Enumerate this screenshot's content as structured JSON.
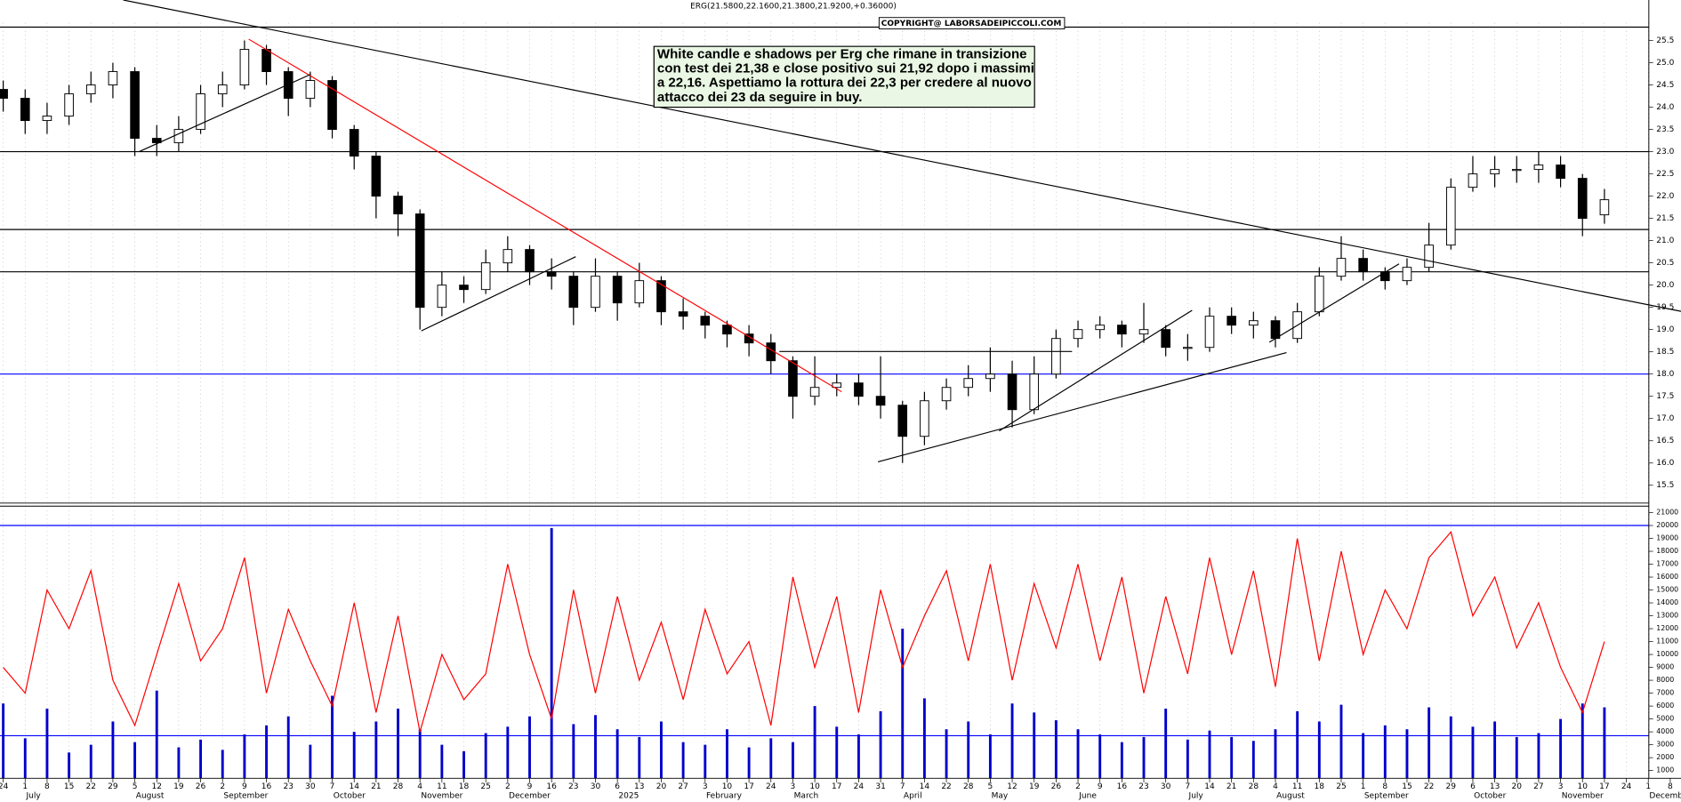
{
  "chart_data": [
    {
      "type": "candlestick",
      "title": "ERG(21.5800,22.1600,21.3800,21.9200,+0.36000)",
      "copyright": "COPYRIGHT@ LABORSADEIPICCOLI.COM",
      "annotation": [
        "White candle e shadows per Erg che rimane in transizione",
        "con test dei 21,38 e close positivo sui 21,92 dopo i massimi",
        "a 22,16.  Aspettiamo la rottura dei 22,3 per credere al nuovo",
        "attacco dei 23 da seguire in buy."
      ],
      "categories": [
        "24",
        "1",
        "8",
        "15",
        "22",
        "29",
        "5",
        "12",
        "19",
        "26",
        "2",
        "9",
        "16",
        "23",
        "30",
        "7",
        "14",
        "21",
        "28",
        "4",
        "11",
        "18",
        "25",
        "2",
        "9",
        "16",
        "23",
        "30",
        "6",
        "13",
        "20",
        "27",
        "3",
        "10",
        "17",
        "24",
        "3",
        "10",
        "17",
        "24",
        "31",
        "7",
        "14",
        "22",
        "28",
        "5",
        "12",
        "19",
        "26",
        "2",
        "9",
        "16",
        "23",
        "30",
        "7",
        "14",
        "21",
        "28",
        "4",
        "11",
        "18",
        "25",
        "1",
        "8",
        "15",
        "22",
        "29",
        "6",
        "13",
        "20",
        "27",
        "3",
        "10",
        "17",
        "24",
        "1",
        "8"
      ],
      "months": [
        null,
        "July",
        null,
        null,
        null,
        null,
        "August",
        null,
        null,
        null,
        "September",
        null,
        null,
        null,
        null,
        "October",
        null,
        null,
        null,
        "November",
        null,
        null,
        null,
        "December",
        null,
        null,
        null,
        null,
        "2025",
        null,
        null,
        null,
        "February",
        null,
        null,
        null,
        "March",
        null,
        null,
        null,
        null,
        "April",
        null,
        null,
        null,
        "May",
        null,
        null,
        null,
        "June",
        null,
        null,
        null,
        null,
        "July",
        null,
        null,
        null,
        "August",
        null,
        null,
        null,
        "September",
        null,
        null,
        null,
        null,
        "October",
        null,
        null,
        null,
        "November",
        null,
        null,
        null,
        "December",
        null
      ],
      "open": [
        24.4,
        24.2,
        23.7,
        23.8,
        24.3,
        24.5,
        24.8,
        23.3,
        23.2,
        23.5,
        24.3,
        24.5,
        25.3,
        24.8,
        24.2,
        24.6,
        23.5,
        22.9,
        22.0,
        21.6,
        19.5,
        20.0,
        19.9,
        20.5,
        20.8,
        20.3,
        20.2,
        19.5,
        20.2,
        19.6,
        20.1,
        19.4,
        19.3,
        19.1,
        18.9,
        18.7,
        18.3,
        17.5,
        17.7,
        17.8,
        17.5,
        17.3,
        16.6,
        17.4,
        17.7,
        17.9,
        18.0,
        17.2,
        18.0,
        18.8,
        19.0,
        19.1,
        18.9,
        19.0,
        18.6,
        18.6,
        19.3,
        19.1,
        19.2,
        18.8,
        19.4,
        20.2,
        20.6,
        20.3,
        20.1,
        20.4,
        20.9,
        22.2,
        22.5,
        22.6,
        22.6,
        22.7,
        22.4,
        21.58,
        null,
        null,
        null
      ],
      "high": [
        24.6,
        24.4,
        24.1,
        24.5,
        24.8,
        25.0,
        24.9,
        23.6,
        23.8,
        24.5,
        24.8,
        25.5,
        25.4,
        24.9,
        24.8,
        24.7,
        23.6,
        23.0,
        22.1,
        21.7,
        20.3,
        20.2,
        20.8,
        21.1,
        20.9,
        20.6,
        20.3,
        20.6,
        20.3,
        20.5,
        20.2,
        19.7,
        19.4,
        19.2,
        19.1,
        18.9,
        18.4,
        18.4,
        18.0,
        18.0,
        18.4,
        17.4,
        17.6,
        17.9,
        18.2,
        18.6,
        18.3,
        18.4,
        19.0,
        19.2,
        19.3,
        19.2,
        19.6,
        19.1,
        18.9,
        19.5,
        19.5,
        19.4,
        19.3,
        19.6,
        20.4,
        21.1,
        20.8,
        20.4,
        20.6,
        21.4,
        22.4,
        22.9,
        22.9,
        22.9,
        23.0,
        22.9,
        22.5,
        22.16,
        null,
        null,
        null
      ],
      "low": [
        23.9,
        23.4,
        23.4,
        23.6,
        24.1,
        24.2,
        22.9,
        22.9,
        23.0,
        23.4,
        24.0,
        24.4,
        24.5,
        23.8,
        24.0,
        23.3,
        22.6,
        21.5,
        21.1,
        19.0,
        19.3,
        19.6,
        19.8,
        20.3,
        20.0,
        19.9,
        19.1,
        19.4,
        19.2,
        19.5,
        19.1,
        19.0,
        18.8,
        18.6,
        18.4,
        18.0,
        17.0,
        17.3,
        17.5,
        17.3,
        17.0,
        16.0,
        16.4,
        17.2,
        17.5,
        17.6,
        16.8,
        17.1,
        17.9,
        18.6,
        18.8,
        18.6,
        18.7,
        18.4,
        18.3,
        18.5,
        18.9,
        18.8,
        18.6,
        18.7,
        19.3,
        20.1,
        20.1,
        19.9,
        20.0,
        20.3,
        20.8,
        22.1,
        22.2,
        22.3,
        22.3,
        22.2,
        21.1,
        21.38,
        null,
        null,
        null
      ],
      "close": [
        24.2,
        23.7,
        23.8,
        24.3,
        24.5,
        24.8,
        23.3,
        23.2,
        23.5,
        24.3,
        24.5,
        25.3,
        24.8,
        24.2,
        24.6,
        23.5,
        22.9,
        22.0,
        21.6,
        19.5,
        20.0,
        19.9,
        20.5,
        20.8,
        20.3,
        20.2,
        19.5,
        20.2,
        19.6,
        20.1,
        19.4,
        19.3,
        19.1,
        18.9,
        18.7,
        18.3,
        17.5,
        17.7,
        17.8,
        17.5,
        17.3,
        16.6,
        17.4,
        17.7,
        17.9,
        18.0,
        17.2,
        18.0,
        18.8,
        19.0,
        19.1,
        18.9,
        19.0,
        18.6,
        18.6,
        19.3,
        19.1,
        19.2,
        18.8,
        19.4,
        20.2,
        20.6,
        20.3,
        20.1,
        20.4,
        20.9,
        22.2,
        22.5,
        22.6,
        22.6,
        22.7,
        22.4,
        21.5,
        21.92,
        null,
        null,
        null
      ],
      "ylim": [
        15.1,
        25.9
      ],
      "yticks": [
        15.5,
        {
          "value": 16,
          "label": "16.0"
        },
        16.5,
        {
          "value": 17,
          "label": "17.0"
        },
        17.5,
        {
          "value": 18,
          "label": "18.0"
        },
        18.5,
        {
          "value": 19,
          "label": "19.0"
        },
        19.5,
        {
          "value": 20,
          "label": "20.0"
        },
        20.5,
        {
          "value": 21,
          "label": "21.0"
        },
        21.5,
        {
          "value": 22,
          "label": "22.0"
        },
        22.5,
        {
          "value": 23,
          "label": "23.0"
        },
        23.5,
        {
          "value": 24,
          "label": "24.0"
        },
        24.5,
        {
          "value": 25,
          "label": "25.0"
        },
        25.5
      ],
      "hlines": [
        {
          "value": 25.8,
          "color": "#000000"
        },
        {
          "value": 23.0,
          "color": "#000000"
        },
        {
          "value": 21.25,
          "color": "#000000"
        },
        {
          "value": 20.3,
          "color": "#000000"
        },
        {
          "value": 18.0,
          "color": "#0000ff"
        }
      ]
    },
    {
      "type": "volume",
      "volume": [
        6200,
        3500,
        5800,
        2400,
        3000,
        4800,
        3200,
        7200,
        2800,
        3400,
        2600,
        3800,
        4500,
        5200,
        3000,
        6800,
        4000,
        4800,
        5800,
        4200,
        3000,
        2500,
        3900,
        4400,
        5200,
        19800,
        4600,
        5300,
        4200,
        3600,
        4800,
        3200,
        3000,
        4200,
        2800,
        3500,
        3200,
        6000,
        4400,
        3800,
        5600,
        12000,
        6600,
        4200,
        4800,
        3800,
        6200,
        5500,
        4900,
        4200,
        3800,
        3200,
        3600,
        5800,
        3400,
        4100,
        3600,
        3300,
        4200,
        5600,
        4800,
        6100,
        3900,
        4500,
        4200,
        5900,
        5200,
        4400,
        4800,
        3600,
        3900,
        5000,
        6200,
        5900,
        null,
        null,
        null
      ],
      "volume_color": "#0000cc",
      "oscillator": [
        9000,
        7000,
        15000,
        12000,
        16500,
        8000,
        4500,
        10000,
        15500,
        9500,
        12000,
        17500,
        7000,
        13500,
        9500,
        6000,
        14000,
        5500,
        13000,
        4000,
        10000,
        6500,
        8500,
        17000,
        10000,
        5000,
        15000,
        7000,
        14500,
        8000,
        12500,
        6500,
        13500,
        8500,
        11000,
        4500,
        16000,
        9000,
        14500,
        5500,
        15000,
        9000,
        13000,
        16500,
        9500,
        17000,
        8000,
        15500,
        10500,
        17000,
        9500,
        16000,
        7000,
        14500,
        8500,
        17500,
        10000,
        16500,
        7500,
        19000,
        9500,
        18000,
        10000,
        15000,
        12000,
        17500,
        19500,
        13000,
        16000,
        10500,
        14000,
        9000,
        5500,
        11000,
        null,
        null,
        null
      ],
      "oscillator_color": "#ff0000",
      "ylim": [
        400,
        21500
      ],
      "yticks": [
        1000,
        2000,
        3000,
        4000,
        5000,
        6000,
        7000,
        8000,
        9000,
        10000,
        11000,
        12000,
        13000,
        14000,
        15000,
        16000,
        17000,
        18000,
        19000,
        20000,
        21000
      ],
      "hlines": [
        {
          "value": 20000,
          "color": "#0000ff"
        },
        {
          "value": 3700,
          "color": "#0000ff"
        }
      ]
    }
  ]
}
